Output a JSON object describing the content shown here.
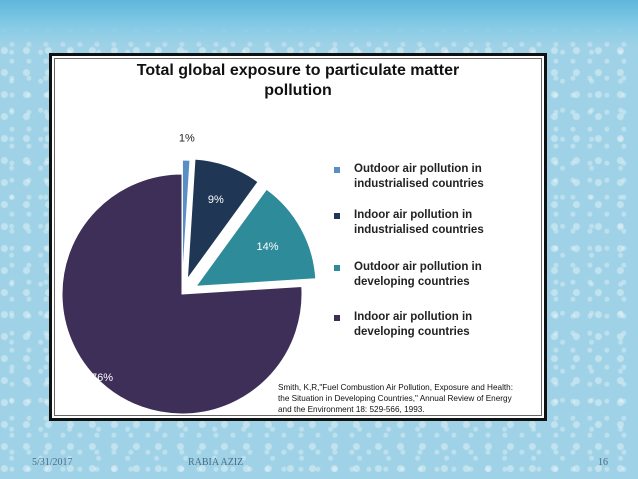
{
  "footer": {
    "date": "5/31/2017",
    "author": "RABIA AZIZ",
    "page_number": "16"
  },
  "chart_data": {
    "type": "pie",
    "title_lines": [
      "Total global exposure to particulate matter",
      "pollution"
    ],
    "categories": [
      "Outdoor air pollution in industrialised countries",
      "Indoor air pollution in industrialised countries",
      "Outdoor air pollution in developing countries",
      "Indoor air pollution in developing countries"
    ],
    "legend_lines": [
      [
        "Outdoor air pollution in",
        "industrialised countries"
      ],
      [
        "Indoor air pollution in",
        "industrialised countries"
      ],
      [
        "Outdoor air pollution in",
        "developing countries"
      ],
      [
        "Indoor air pollution in",
        "developing countries"
      ]
    ],
    "values": [
      1,
      9,
      14,
      76
    ],
    "labels": [
      "1%",
      "9%",
      "14%",
      "76%"
    ],
    "colors": [
      "#5a8fc6",
      "#1f3655",
      "#2e8b9a",
      "#3d2f57"
    ],
    "legend_placement": "right",
    "citation_lines": [
      "Smith, K,R,\"Fuel Combustion Air Pollution, Exposure and Health:",
      "the Situation in Developing Countries,\" Annual Review of Energy",
      "and the Environment 18: 529-566, 1993."
    ]
  }
}
